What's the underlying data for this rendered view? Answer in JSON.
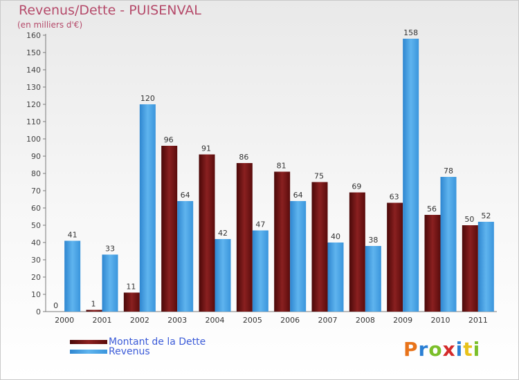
{
  "chart_data": {
    "type": "bar",
    "title": "Revenus/Dette - PUISENVAL",
    "subtitle": "(en milliers d'€)",
    "categories": [
      "2000",
      "2001",
      "2002",
      "2003",
      "2004",
      "2005",
      "2006",
      "2007",
      "2008",
      "2009",
      "2010",
      "2011"
    ],
    "series": [
      {
        "name": "Montant de la Dette",
        "color": "#7a1616",
        "values": [
          0,
          1,
          11,
          96,
          91,
          86,
          81,
          75,
          69,
          63,
          56,
          50
        ]
      },
      {
        "name": "Revenus",
        "color": "#4aa3e6",
        "values": [
          41,
          33,
          120,
          64,
          42,
          47,
          64,
          40,
          38,
          158,
          78,
          52
        ]
      }
    ],
    "ylim": [
      0,
      160
    ],
    "yticks": [
      0,
      10,
      20,
      30,
      40,
      50,
      60,
      70,
      80,
      90,
      100,
      110,
      120,
      130,
      140,
      150,
      160
    ],
    "grid": false,
    "legend_position": "bottom-left",
    "xlabel": "",
    "ylabel": ""
  },
  "logo": {
    "text": "Proxiti",
    "colors": [
      "#e8731a",
      "#2a7fd4",
      "#7bbf2a",
      "#d42a2a",
      "#2a7fd4",
      "#e8c21a",
      "#7bbf2a"
    ]
  }
}
